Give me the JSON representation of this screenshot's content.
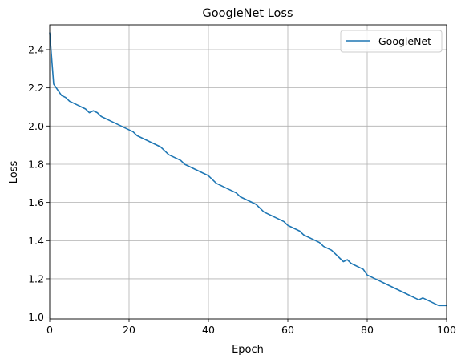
{
  "chart_data": {
    "type": "line",
    "title": "GoogleNet Loss",
    "xlabel": "Epoch",
    "ylabel": "Loss",
    "xlim": [
      0,
      100
    ],
    "ylim": [
      0.99,
      2.53
    ],
    "xticks": [
      0,
      20,
      40,
      60,
      80,
      100
    ],
    "yticks": [
      1.0,
      1.2,
      1.4,
      1.6,
      1.8,
      2.0,
      2.2,
      2.4
    ],
    "grid": true,
    "legend_position": "top-right",
    "series": [
      {
        "name": "GoogleNet",
        "color": "#1f77b4",
        "x": [
          0,
          1,
          2,
          3,
          4,
          5,
          6,
          7,
          8,
          9,
          10,
          11,
          12,
          13,
          14,
          15,
          16,
          17,
          18,
          19,
          20,
          21,
          22,
          23,
          24,
          25,
          26,
          27,
          28,
          29,
          30,
          31,
          32,
          33,
          34,
          35,
          36,
          37,
          38,
          39,
          40,
          41,
          42,
          43,
          44,
          45,
          46,
          47,
          48,
          49,
          50,
          51,
          52,
          53,
          54,
          55,
          56,
          57,
          58,
          59,
          60,
          61,
          62,
          63,
          64,
          65,
          66,
          67,
          68,
          69,
          70,
          71,
          72,
          73,
          74,
          75,
          76,
          77,
          78,
          79,
          80,
          81,
          82,
          83,
          84,
          85,
          86,
          87,
          88,
          89,
          90,
          91,
          92,
          93,
          94,
          95,
          96,
          97,
          98,
          99,
          100
        ],
        "y": [
          2.49,
          2.22,
          2.19,
          2.16,
          2.15,
          2.13,
          2.12,
          2.11,
          2.1,
          2.09,
          2.07,
          2.08,
          2.07,
          2.05,
          2.04,
          2.03,
          2.02,
          2.01,
          2.0,
          1.99,
          1.98,
          1.97,
          1.95,
          1.94,
          1.93,
          1.92,
          1.91,
          1.9,
          1.89,
          1.87,
          1.85,
          1.84,
          1.83,
          1.82,
          1.8,
          1.79,
          1.78,
          1.77,
          1.76,
          1.75,
          1.74,
          1.72,
          1.7,
          1.69,
          1.68,
          1.67,
          1.66,
          1.65,
          1.63,
          1.62,
          1.61,
          1.6,
          1.59,
          1.57,
          1.55,
          1.54,
          1.53,
          1.52,
          1.51,
          1.5,
          1.48,
          1.47,
          1.46,
          1.45,
          1.43,
          1.42,
          1.41,
          1.4,
          1.39,
          1.37,
          1.36,
          1.35,
          1.33,
          1.31,
          1.29,
          1.3,
          1.28,
          1.27,
          1.26,
          1.25,
          1.22,
          1.21,
          1.2,
          1.19,
          1.18,
          1.17,
          1.16,
          1.15,
          1.14,
          1.13,
          1.12,
          1.11,
          1.1,
          1.09,
          1.1,
          1.09,
          1.08,
          1.07,
          1.06,
          1.06,
          1.06
        ]
      }
    ]
  }
}
